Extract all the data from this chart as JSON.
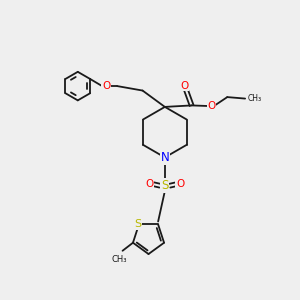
{
  "bg_color": "#efefef",
  "bond_color": "#1a1a1a",
  "atom_colors": {
    "O": "#ff0000",
    "N": "#0000ff",
    "S": "#b8b800",
    "C": "#1a1a1a"
  },
  "lw": 1.3,
  "fs": 7.0
}
